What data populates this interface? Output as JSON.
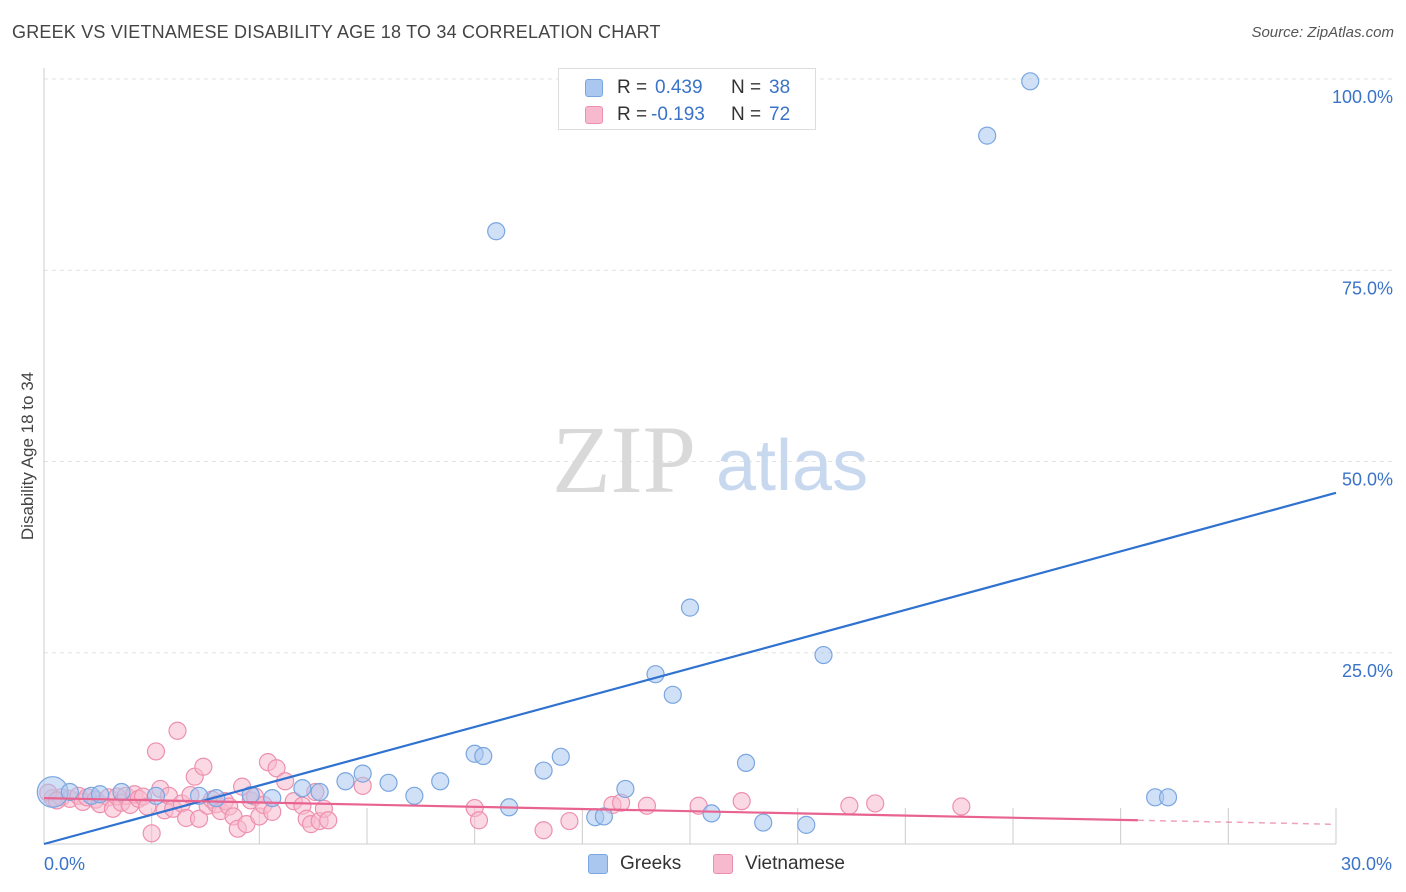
{
  "header": {
    "title": "GREEK VS VIETNAMESE DISABILITY AGE 18 TO 34 CORRELATION CHART",
    "source": "Source: ZipAtlas.com"
  },
  "watermark": {
    "zip": "ZIP",
    "atlas": "atlas"
  },
  "legend_top": {
    "greeks": {
      "r_label": "R =",
      "r_value": "0.439",
      "n_label": "N =",
      "n_value": "38"
    },
    "vietnamese": {
      "r_label": "R =",
      "r_value": "-0.193",
      "n_label": "N =",
      "n_value": "72"
    }
  },
  "legend_bottom": {
    "greeks": "Greeks",
    "vietnamese": "Vietnamese"
  },
  "colors": {
    "greeks_fill": "#a9c7ef",
    "greeks_stroke": "#7aa6e0",
    "greeks_line": "#2f72d0",
    "vietnamese_fill": "#f7b9cd",
    "vietnamese_stroke": "#ee90ad",
    "vietnamese_line": "#e8638f",
    "grid": "#e2e2e2",
    "axis_text": "#3a73c8"
  },
  "chart_data": {
    "type": "scatter",
    "title": "GREEK VS VIETNAMESE DISABILITY AGE 18 TO 34 CORRELATION CHART",
    "xlabel": "",
    "ylabel": "Disability Age 18 to 34",
    "xlim": [
      0,
      30
    ],
    "ylim": [
      0,
      100
    ],
    "x_tick_labels": [
      "0.0%",
      "30.0%"
    ],
    "y_ticks": [
      25,
      50,
      75,
      100
    ],
    "y_tick_labels": [
      "25.0%",
      "50.0%",
      "75.0%",
      "100.0%"
    ],
    "grid": true,
    "legend_position": "top-center",
    "series": [
      {
        "name": "Greeks",
        "r": 0.439,
        "n": 38,
        "trend": {
          "x": [
            0,
            30
          ],
          "y": [
            0,
            45.9
          ]
        },
        "points": [
          [
            0.2,
            6.8,
            1.8
          ],
          [
            0.6,
            6.8,
            1
          ],
          [
            1.1,
            6.3,
            1
          ],
          [
            1.8,
            6.8,
            1
          ],
          [
            2.6,
            6.3,
            1
          ],
          [
            3.6,
            6.3,
            1
          ],
          [
            4.0,
            6.0,
            1
          ],
          [
            4.8,
            6.4,
            1
          ],
          [
            5.3,
            6.0,
            1
          ],
          [
            6.0,
            7.3,
            1
          ],
          [
            6.4,
            6.8,
            1
          ],
          [
            7.0,
            8.2,
            1
          ],
          [
            7.4,
            9.2,
            1
          ],
          [
            8.0,
            8.0,
            1
          ],
          [
            8.6,
            6.3,
            1
          ],
          [
            9.2,
            8.2,
            1
          ],
          [
            10.0,
            11.8,
            1
          ],
          [
            10.2,
            11.5,
            1
          ],
          [
            10.8,
            4.8,
            1
          ],
          [
            11.6,
            9.6,
            1
          ],
          [
            12.0,
            11.4,
            1
          ],
          [
            12.8,
            3.5,
            1
          ],
          [
            13.0,
            3.6,
            1
          ],
          [
            13.5,
            7.2,
            1
          ],
          [
            14.2,
            22.2,
            1
          ],
          [
            14.6,
            19.5,
            1
          ],
          [
            15.0,
            30.9,
            1
          ],
          [
            15.5,
            4.0,
            1
          ],
          [
            16.3,
            10.6,
            1
          ],
          [
            16.7,
            2.8,
            1
          ],
          [
            17.7,
            2.5,
            1
          ],
          [
            18.1,
            24.7,
            1
          ],
          [
            10.5,
            80.1,
            1
          ],
          [
            21.9,
            92.6,
            1
          ],
          [
            22.9,
            99.7,
            1
          ],
          [
            25.8,
            6.1,
            1
          ],
          [
            26.1,
            6.1,
            1
          ],
          [
            1.3,
            6.5,
            1
          ]
        ]
      },
      {
        "name": "Vietnamese",
        "r": -0.193,
        "n": 72,
        "trend": {
          "x": [
            0,
            25.4
          ],
          "y": [
            6.0,
            3.1
          ]
        },
        "points": [
          [
            0.2,
            6.0,
            1
          ],
          [
            0.4,
            6.1,
            1
          ],
          [
            0.6,
            5.9,
            1
          ],
          [
            0.8,
            6.3,
            1
          ],
          [
            0.9,
            5.5,
            1
          ],
          [
            1.0,
            6.1,
            1
          ],
          [
            1.2,
            5.8,
            1
          ],
          [
            1.3,
            5.2,
            1
          ],
          [
            1.5,
            6.1,
            1
          ],
          [
            1.6,
            4.6,
            1
          ],
          [
            1.7,
            6.2,
            1
          ],
          [
            1.8,
            5.4,
            1
          ],
          [
            1.9,
            6.3,
            1
          ],
          [
            2.0,
            5.1,
            1
          ],
          [
            2.1,
            6.5,
            1
          ],
          [
            2.2,
            5.9,
            1
          ],
          [
            2.3,
            6.2,
            1
          ],
          [
            2.4,
            4.9,
            1
          ],
          [
            2.5,
            1.4,
            1
          ],
          [
            2.6,
            12.1,
            1
          ],
          [
            2.7,
            7.2,
            1
          ],
          [
            2.8,
            4.4,
            1
          ],
          [
            2.9,
            6.3,
            1
          ],
          [
            3.0,
            4.6,
            1
          ],
          [
            3.1,
            14.8,
            1
          ],
          [
            3.2,
            5.3,
            1
          ],
          [
            3.3,
            3.4,
            1
          ],
          [
            3.4,
            6.4,
            1
          ],
          [
            3.5,
            8.8,
            1
          ],
          [
            3.6,
            3.3,
            1
          ],
          [
            3.7,
            10.1,
            1
          ],
          [
            3.8,
            5.0,
            1
          ],
          [
            3.9,
            5.8,
            1
          ],
          [
            4.0,
            5.2,
            1
          ],
          [
            4.1,
            4.3,
            1
          ],
          [
            4.2,
            5.6,
            1
          ],
          [
            4.3,
            4.9,
            1
          ],
          [
            4.4,
            3.6,
            1
          ],
          [
            4.5,
            2.0,
            1
          ],
          [
            4.6,
            7.5,
            1
          ],
          [
            4.7,
            2.6,
            1
          ],
          [
            4.8,
            5.7,
            1
          ],
          [
            4.9,
            6.2,
            1
          ],
          [
            5.0,
            3.6,
            1
          ],
          [
            5.1,
            5.1,
            1
          ],
          [
            5.2,
            10.7,
            1
          ],
          [
            5.3,
            4.2,
            1
          ],
          [
            5.4,
            9.9,
            1
          ],
          [
            5.6,
            8.2,
            1
          ],
          [
            5.8,
            5.6,
            1
          ],
          [
            6.0,
            5.0,
            1
          ],
          [
            6.1,
            3.3,
            1
          ],
          [
            6.2,
            2.6,
            1
          ],
          [
            6.3,
            6.8,
            1
          ],
          [
            6.4,
            3.0,
            1
          ],
          [
            6.5,
            4.6,
            1
          ],
          [
            6.6,
            3.1,
            1
          ],
          [
            7.4,
            7.6,
            1
          ],
          [
            10.0,
            4.7,
            1
          ],
          [
            10.1,
            3.1,
            1
          ],
          [
            11.6,
            1.8,
            1
          ],
          [
            12.2,
            3.0,
            1
          ],
          [
            13.2,
            5.1,
            1
          ],
          [
            13.4,
            5.4,
            1
          ],
          [
            14.0,
            5.0,
            1
          ],
          [
            15.2,
            5.0,
            1
          ],
          [
            16.2,
            5.6,
            1
          ],
          [
            18.7,
            5.0,
            1
          ],
          [
            19.3,
            5.3,
            1
          ],
          [
            21.3,
            4.9,
            1
          ],
          [
            0.1,
            6.7,
            1
          ],
          [
            0.3,
            5.7,
            1
          ]
        ]
      }
    ]
  }
}
